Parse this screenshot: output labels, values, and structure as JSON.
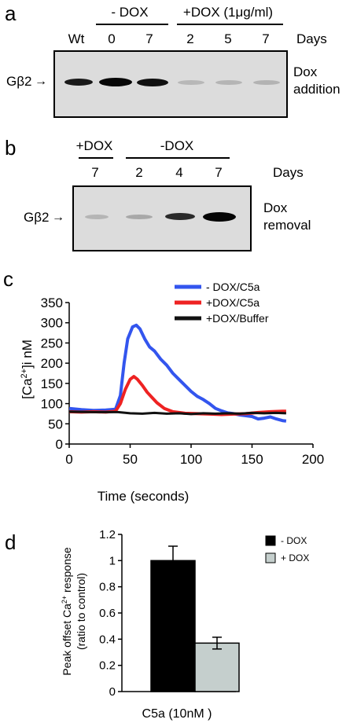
{
  "panel_a": {
    "letter": "a",
    "group_minus": "- DOX",
    "group_plus": "+DOX (1μg/ml)",
    "lanes": [
      "Wt",
      "0",
      "7",
      "2",
      "5",
      "7"
    ],
    "days_label": "Days",
    "marker": "Gβ2",
    "side_label_1": "Dox",
    "side_label_2": "addition"
  },
  "panel_b": {
    "letter": "b",
    "group_plus": "+DOX",
    "group_minus": "-DOX",
    "lanes": [
      "7",
      "2",
      "4",
      "7"
    ],
    "days_label": "Days",
    "marker": "Gβ2",
    "side_label_1": "Dox",
    "side_label_2": "removal"
  },
  "panel_c": {
    "letter": "c",
    "chart_data": {
      "type": "line",
      "xlabel": "Time (seconds)",
      "ylabel_main": "[Ca",
      "ylabel_sup": "2+",
      "ylabel_end": "]i nM",
      "xlim": [
        0,
        200
      ],
      "ylim": [
        0,
        350
      ],
      "xticks": [
        0,
        50,
        100,
        150,
        200
      ],
      "yticks": [
        0,
        50,
        100,
        150,
        200,
        250,
        300,
        350
      ],
      "series": [
        {
          "name": "- DOX/C5a",
          "color": "#3355ee",
          "x": [
            0,
            10,
            20,
            30,
            38,
            42,
            45,
            48,
            52,
            55,
            58,
            62,
            66,
            70,
            75,
            80,
            85,
            90,
            95,
            100,
            105,
            110,
            115,
            120,
            125,
            130,
            135,
            140,
            145,
            150,
            155,
            160,
            165,
            170,
            175,
            178
          ],
          "y": [
            88,
            85,
            83,
            84,
            86,
            120,
            200,
            260,
            290,
            294,
            285,
            260,
            240,
            230,
            210,
            195,
            175,
            160,
            145,
            130,
            118,
            110,
            100,
            88,
            82,
            77,
            75,
            72,
            70,
            68,
            62,
            64,
            67,
            62,
            58,
            57
          ]
        },
        {
          "name": "+DOX/C5a",
          "color": "#ee2222",
          "x": [
            0,
            10,
            20,
            30,
            38,
            42,
            46,
            50,
            53,
            56,
            60,
            64,
            68,
            72,
            78,
            85,
            95,
            105,
            115,
            125,
            135,
            145,
            155,
            165,
            175,
            178
          ],
          "y": [
            80,
            79,
            80,
            79,
            81,
            100,
            135,
            160,
            167,
            160,
            145,
            128,
            115,
            102,
            88,
            80,
            76,
            75,
            74,
            73,
            74,
            75,
            78,
            80,
            81,
            81
          ]
        },
        {
          "name": "+DOX/Buffer",
          "color": "#111111",
          "x": [
            0,
            20,
            40,
            50,
            60,
            70,
            80,
            90,
            100,
            110,
            120,
            130,
            140,
            150,
            160,
            170,
            178
          ],
          "y": [
            80,
            79,
            79,
            76,
            75,
            77,
            75,
            76,
            74,
            76,
            75,
            76,
            75,
            77,
            76,
            77,
            76
          ]
        }
      ]
    }
  },
  "panel_d": {
    "letter": "d",
    "chart_data": {
      "type": "bar",
      "xlabel": "C5a (10nM )",
      "ylabel_line1": "Peak offset Ca",
      "ylabel_sup": "2+",
      "ylabel_line1_end": " response",
      "ylabel_line2": "(ratio to control)",
      "ylim": [
        0,
        1.2
      ],
      "yticks": [
        "0",
        "0.2",
        "0.4",
        "0.6",
        "0.8",
        "1",
        "1.2"
      ],
      "series": [
        {
          "name": "- DOX",
          "value": 1.0,
          "error": 0.11,
          "color": "#000000"
        },
        {
          "name": "+ DOX",
          "value": 0.37,
          "error": 0.045,
          "color": "#c5cfcd"
        }
      ]
    }
  }
}
